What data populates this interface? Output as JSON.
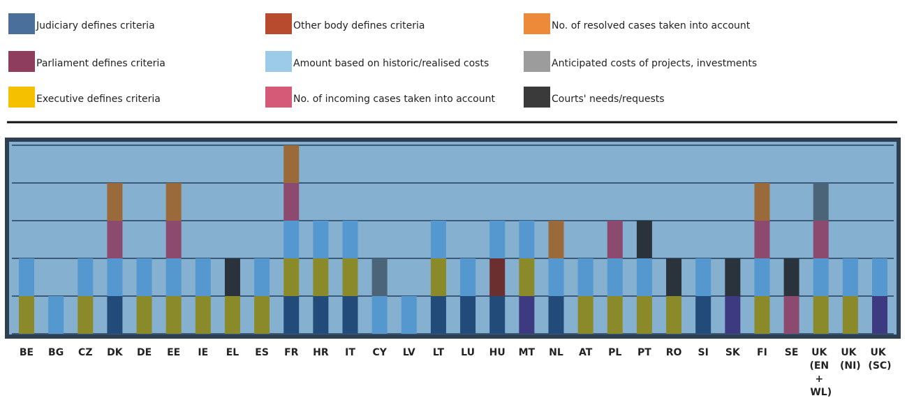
{
  "chart_data": {
    "type": "bar",
    "stacked": true,
    "grid": true,
    "categories": [
      "BE",
      "BG",
      "CZ",
      "DK",
      "DE",
      "EE",
      "IE",
      "EL",
      "ES",
      "FR",
      "HR",
      "IT",
      "CY",
      "LV",
      "LT",
      "LU",
      "HU",
      "MT",
      "NL",
      "AT",
      "PL",
      "PT",
      "RO",
      "SI",
      "SK",
      "FI",
      "SE",
      "UK (EN + WL)",
      "UK (NI)",
      "UK (SC)"
    ],
    "ylim": [
      0,
      5
    ],
    "yticks": [
      0,
      1,
      2,
      3,
      4,
      5
    ],
    "series": [
      {
        "name": "Judiciary defines criteria",
        "color": "#4a6f9b",
        "bar_color": "#234b7a",
        "values": [
          0,
          0,
          0,
          1,
          0,
          0,
          0,
          0,
          0,
          1,
          1,
          1,
          0,
          0,
          1,
          1,
          1,
          0,
          1,
          0,
          0,
          0,
          0,
          1,
          0,
          0,
          0,
          0,
          0,
          0
        ]
      },
      {
        "name": "Parliament defines criteria",
        "color": "#8e3d5e",
        "bar_color": "#3d3a82",
        "values": [
          0,
          0,
          0,
          0,
          0,
          0,
          0,
          0,
          0,
          0,
          0,
          0,
          0,
          0,
          0,
          0,
          0,
          1,
          0,
          0,
          0,
          0,
          0,
          0,
          1,
          0,
          0,
          0,
          0,
          1
        ]
      },
      {
        "name": "Other body defines criteria",
        "color": "#b84a2e",
        "bar_color": "#6b2f2f",
        "values": [
          0,
          0,
          0,
          0,
          0,
          0,
          0,
          0,
          0,
          0,
          0,
          0,
          0,
          0,
          0,
          0,
          1,
          0,
          0,
          0,
          0,
          0,
          0,
          0,
          0,
          0,
          0,
          0,
          0,
          0
        ]
      },
      {
        "name": "Executive defines criteria",
        "color": "#f5c000",
        "bar_color": "#8b8a2a",
        "values": [
          1,
          0,
          1,
          0,
          1,
          1,
          1,
          1,
          1,
          1,
          1,
          1,
          0,
          0,
          1,
          0,
          0,
          1,
          0,
          1,
          1,
          1,
          1,
          0,
          0,
          1,
          0,
          1,
          1,
          0
        ]
      },
      {
        "name": "Amount based on historic/realised costs",
        "color": "#9bcbe8",
        "bar_color": "#5597cf",
        "values": [
          1,
          1,
          1,
          1,
          1,
          1,
          1,
          0,
          1,
          1,
          1,
          1,
          1,
          1,
          1,
          1,
          1,
          1,
          1,
          1,
          1,
          1,
          0,
          1,
          0,
          1,
          0,
          1,
          1,
          1
        ]
      },
      {
        "name": "No. of incoming cases taken into account",
        "color": "#d45a78",
        "bar_color": "#8b4a6e",
        "values": [
          0,
          0,
          0,
          1,
          0,
          1,
          0,
          0,
          0,
          1,
          0,
          0,
          0,
          0,
          0,
          0,
          0,
          0,
          0,
          0,
          1,
          0,
          0,
          0,
          0,
          1,
          1,
          1,
          0,
          0
        ]
      },
      {
        "name": "No. of resolved cases taken into account",
        "color": "#ec8a3a",
        "bar_color": "#9a6a3a",
        "values": [
          0,
          0,
          0,
          1,
          0,
          1,
          0,
          0,
          0,
          1,
          0,
          0,
          0,
          0,
          0,
          0,
          0,
          0,
          1,
          0,
          0,
          0,
          0,
          0,
          0,
          1,
          0,
          0,
          0,
          0
        ]
      },
      {
        "name": "Anticipated costs of projects, investments",
        "color": "#9c9c9c",
        "bar_color": "#4b6478",
        "values": [
          0,
          0,
          0,
          0,
          0,
          0,
          0,
          0,
          0,
          0,
          0,
          0,
          1,
          0,
          0,
          0,
          0,
          0,
          0,
          0,
          0,
          0,
          0,
          0,
          0,
          0,
          0,
          1,
          0,
          0
        ]
      },
      {
        "name": "Courts' needs/requests",
        "color": "#3a3a3a",
        "bar_color": "#2a333c",
        "values": [
          0,
          0,
          0,
          0,
          0,
          0,
          0,
          1,
          0,
          0,
          0,
          0,
          0,
          0,
          0,
          0,
          0,
          0,
          0,
          0,
          0,
          1,
          1,
          0,
          1,
          0,
          1,
          0,
          0,
          0
        ]
      }
    ]
  }
}
